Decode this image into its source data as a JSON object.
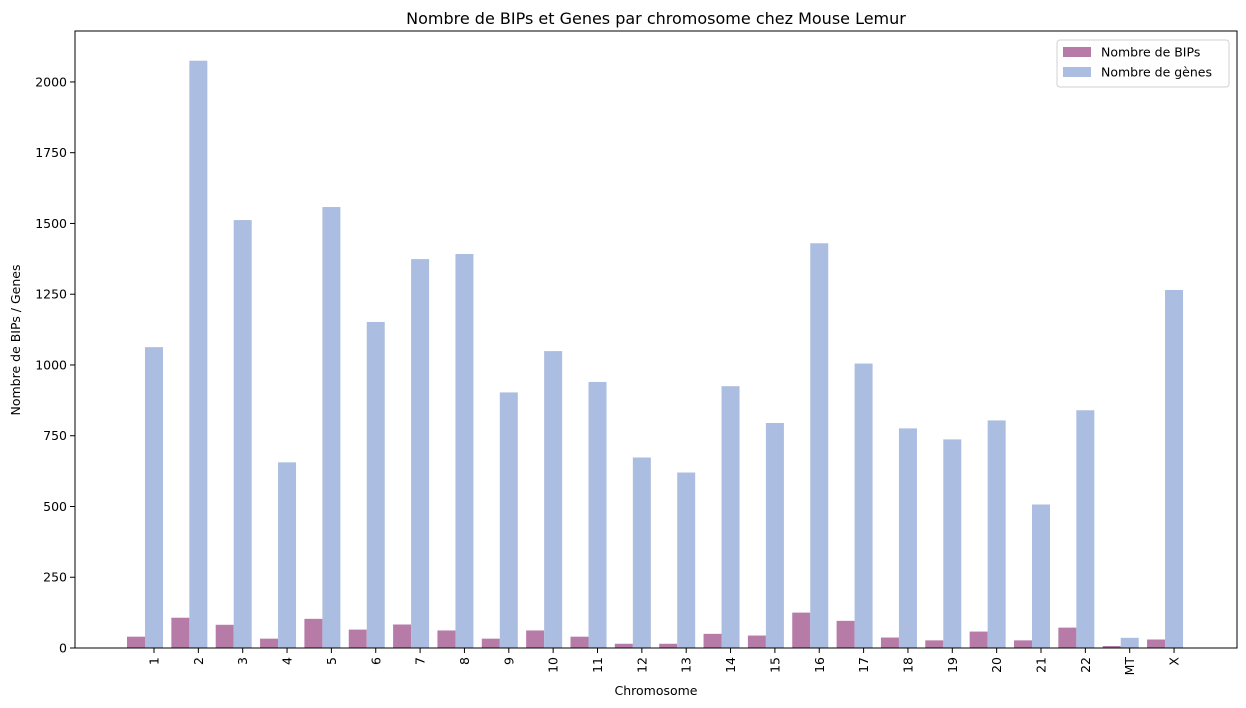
{
  "chart_data": {
    "type": "bar",
    "title": "Nombre de BIPs et Genes par chromosome chez Mouse Lemur",
    "xlabel": "Chromosome",
    "ylabel": "Nombre de BIPs / Genes",
    "ylim": [
      0,
      2180
    ],
    "yticks": [
      0,
      250,
      500,
      750,
      1000,
      1250,
      1500,
      1750,
      2000
    ],
    "categories": [
      "1",
      "2",
      "3",
      "4",
      "5",
      "6",
      "7",
      "8",
      "9",
      "10",
      "11",
      "12",
      "13",
      "14",
      "15",
      "16",
      "17",
      "18",
      "19",
      "20",
      "21",
      "22",
      "MT",
      "X"
    ],
    "series": [
      {
        "name": "Nombre de BIPs",
        "color": "#b77ba8",
        "values": [
          40,
          107,
          82,
          33,
          103,
          65,
          83,
          62,
          33,
          62,
          40,
          15,
          15,
          50,
          44,
          125,
          96,
          37,
          27,
          58,
          27,
          72,
          7,
          30
        ]
      },
      {
        "name": "Nombre de gènes",
        "color": "#abbde0",
        "values": [
          1063,
          2075,
          1512,
          656,
          1558,
          1152,
          1374,
          1392,
          903,
          1049,
          940,
          673,
          620,
          925,
          795,
          1430,
          1005,
          776,
          737,
          804,
          507,
          840,
          36,
          1265
        ]
      }
    ],
    "legend_position": "top-right",
    "grid": false
  }
}
